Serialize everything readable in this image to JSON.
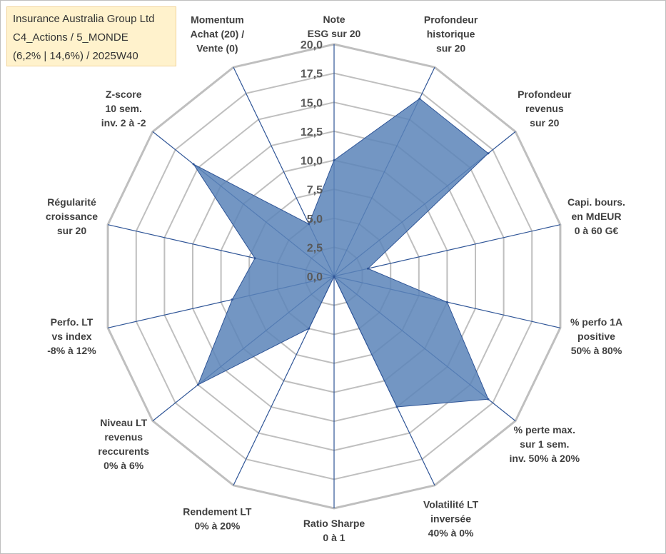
{
  "title_box": {
    "line1": "Insurance Australia Group Ltd",
    "line2": "C4_Actions / 5_MONDE",
    "line3": "(6,2% | 14,6%) / 2025W40"
  },
  "colors": {
    "fill": "#5b84b8",
    "stroke": "#2f5597",
    "spoke": "#2f5597",
    "ring": "#bfbfbf",
    "title_bg": "#fff2cc"
  },
  "chart_data": {
    "type": "radar",
    "title": "Insurance Australia Group Ltd",
    "rmin": 0,
    "rmax": 20,
    "ring_step": 2.5,
    "ticks": [
      "0,0",
      "2,5",
      "5,0",
      "7,5",
      "10,0",
      "12,5",
      "15,0",
      "17,5",
      "20,0"
    ],
    "axes": [
      {
        "label": [
          "Note",
          "ESG sur 20"
        ],
        "value": 10.0
      },
      {
        "label": [
          "Profondeur",
          "historique",
          "sur 20"
        ],
        "value": 17.0
      },
      {
        "label": [
          "Profondeur",
          "revenus",
          "sur 20"
        ],
        "value": 17.0
      },
      {
        "label": [
          "Capi. bours.",
          "en MdEUR",
          "0 à 60 G€"
        ],
        "value": 3.0
      },
      {
        "label": [
          "% perfo 1A",
          "positive",
          "50% à 80%"
        ],
        "value": 10.0
      },
      {
        "label": [
          "% perte max.",
          "sur 1 sem.",
          "inv. 50% à 20%"
        ],
        "value": 17.0
      },
      {
        "label": [
          "Volatilité LT",
          "inversée",
          "40% à 0%"
        ],
        "value": 12.5
      },
      {
        "label": [
          "Ratio Sharpe",
          "0 à 1"
        ],
        "value": 0.0
      },
      {
        "label": [
          "Rendement LT",
          "0% à 20%"
        ],
        "value": 5.0
      },
      {
        "label": [
          "Niveau LT",
          "revenus",
          "reccurents",
          "0% à 6%"
        ],
        "value": 15.0
      },
      {
        "label": [
          "Perfo. LT",
          "vs index",
          "-8% à 12%"
        ],
        "value": 9.0
      },
      {
        "label": [
          "Régularité",
          "croissance",
          "sur 20"
        ],
        "value": 7.0
      },
      {
        "label": [
          "Z-score",
          "10 sem.",
          "inv. 2 à -2"
        ],
        "value": 15.5
      },
      {
        "label": [
          "Momentum",
          "Achat (20) /",
          "Vente (0)"
        ],
        "value": 5.0
      }
    ]
  }
}
